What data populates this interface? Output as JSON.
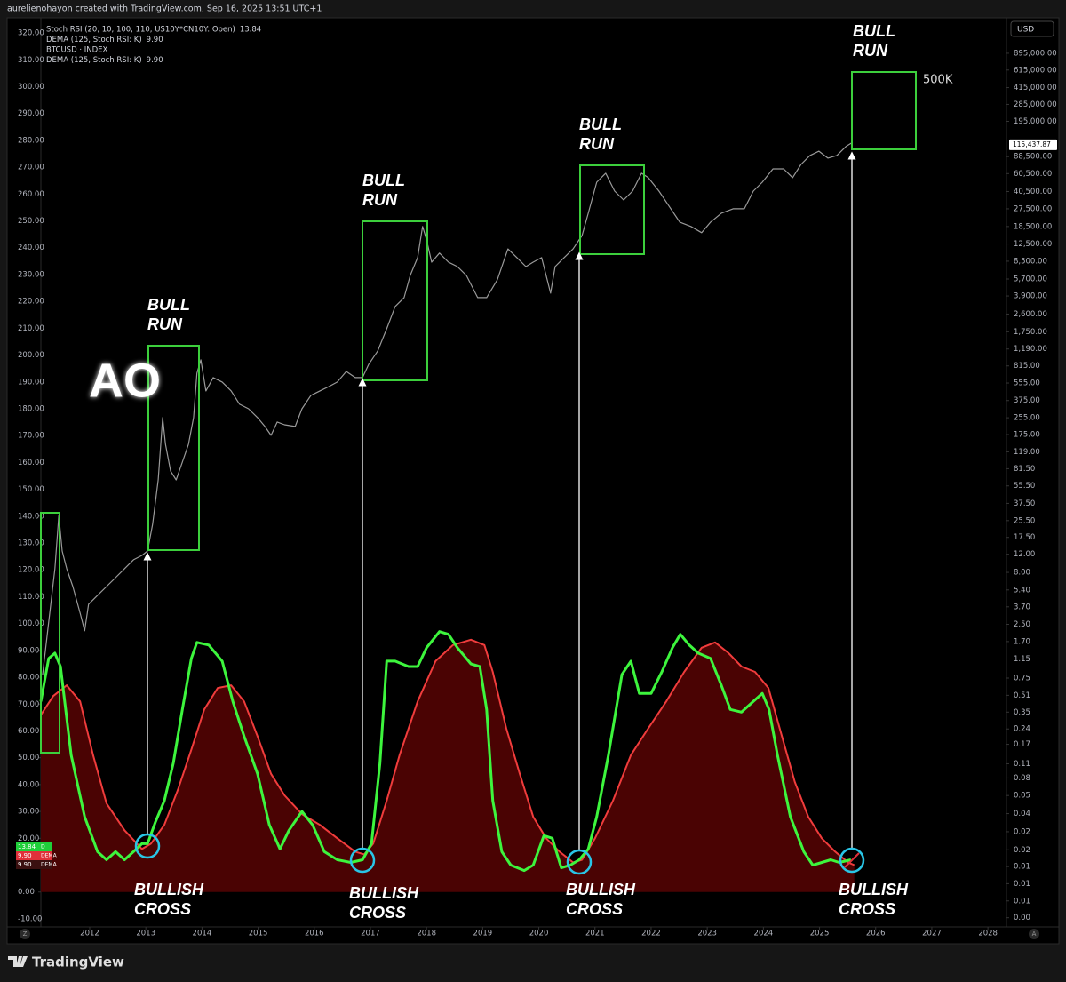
{
  "header_text": "aurelienohayon created with TradingView.com, Sep 16, 2025 13:51 UTC+1",
  "footer_brand": "TradingView",
  "buttons": {
    "currency": "USD",
    "left": "Z",
    "right": "A"
  },
  "chart_data": {
    "type": "line",
    "xlim": [
      2011.13,
      2028.33
    ],
    "xticks": [
      2012,
      2013,
      2014,
      2015,
      2016,
      2017,
      2018,
      2019,
      2020,
      2021,
      2022,
      2023,
      2024,
      2025,
      2026,
      2027,
      2028
    ],
    "ylim": [
      -13,
      323
    ],
    "yticks": [
      {
        "value": 320,
        "label": "320.00"
      },
      {
        "value": 310,
        "label": "310.00"
      },
      {
        "value": 300,
        "label": "300.00"
      },
      {
        "value": 290,
        "label": "290.00"
      },
      {
        "value": 280,
        "label": "280.00"
      },
      {
        "value": 270,
        "label": "270.00"
      },
      {
        "value": 260,
        "label": "260.00"
      },
      {
        "value": 250,
        "label": "250.00"
      },
      {
        "value": 240,
        "label": "240.00"
      },
      {
        "value": 230,
        "label": "230.00"
      },
      {
        "value": 220,
        "label": "220.00"
      },
      {
        "value": 210,
        "label": "210.00"
      },
      {
        "value": 200,
        "label": "200.00"
      },
      {
        "value": 190,
        "label": "190.00"
      },
      {
        "value": 180,
        "label": "180.00"
      },
      {
        "value": 170,
        "label": "170.00"
      },
      {
        "value": 160,
        "label": "160.00"
      },
      {
        "value": 150,
        "label": "150.00"
      },
      {
        "value": 140,
        "label": "140.00"
      },
      {
        "value": 130,
        "label": "130.00"
      },
      {
        "value": 120,
        "label": "120.00"
      },
      {
        "value": 110,
        "label": "110.00"
      },
      {
        "value": 100,
        "label": "100.00"
      },
      {
        "value": 90,
        "label": "90.00"
      },
      {
        "value": 80,
        "label": "80.00"
      },
      {
        "value": 70,
        "label": "70.00"
      },
      {
        "value": 60,
        "label": "60.00"
      },
      {
        "value": 50,
        "label": "50.00"
      },
      {
        "value": 40,
        "label": "40.00"
      },
      {
        "value": 30,
        "label": "30.00"
      },
      {
        "value": 20,
        "label": "20.00"
      },
      {
        "value": 10,
        "label": "10.00"
      },
      {
        "value": 0,
        "label": "0.00"
      },
      {
        "value": -10,
        "label": "-10.00"
      }
    ],
    "y2lim": [
      0.00285,
      1690000
    ],
    "y2log": true,
    "y2ticks": [
      {
        "value": 895000,
        "label": "895,000.00"
      },
      {
        "value": 615000,
        "label": "615,000.00"
      },
      {
        "value": 415000,
        "label": "415,000.00"
      },
      {
        "value": 285000,
        "label": "285,000.00"
      },
      {
        "value": 195000,
        "label": "195,000.00"
      },
      {
        "value": 88500,
        "label": "88,500.00"
      },
      {
        "value": 60500,
        "label": "60,500.00"
      },
      {
        "value": 40500,
        "label": "40,500.00"
      },
      {
        "value": 27500,
        "label": "27,500.00"
      },
      {
        "value": 18500,
        "label": "18,500.00"
      },
      {
        "value": 12500,
        "label": "12,500.00"
      },
      {
        "value": 8500,
        "label": "8,500.00"
      },
      {
        "value": 5700,
        "label": "5,700.00"
      },
      {
        "value": 3900,
        "label": "3,900.00"
      },
      {
        "value": 2600,
        "label": "2,600.00"
      },
      {
        "value": 1750,
        "label": "1,750.00"
      },
      {
        "value": 1190,
        "label": "1,190.00"
      },
      {
        "value": 815,
        "label": "815.00"
      },
      {
        "value": 555,
        "label": "555.00"
      },
      {
        "value": 375,
        "label": "375.00"
      },
      {
        "value": 255,
        "label": "255.00"
      },
      {
        "value": 175,
        "label": "175.00"
      },
      {
        "value": 119,
        "label": "119.00"
      },
      {
        "value": 81.5,
        "label": "81.50"
      },
      {
        "value": 55.5,
        "label": "55.50"
      },
      {
        "value": 37.5,
        "label": "37.50"
      },
      {
        "value": 25.5,
        "label": "25.50"
      },
      {
        "value": 17.5,
        "label": "17.50"
      },
      {
        "value": 12,
        "label": "12.00"
      },
      {
        "value": 8,
        "label": "8.00"
      },
      {
        "value": 5.4,
        "label": "5.40"
      },
      {
        "value": 3.7,
        "label": "3.70"
      },
      {
        "value": 2.5,
        "label": "2.50"
      },
      {
        "value": 1.7,
        "label": "1.70"
      },
      {
        "value": 1.15,
        "label": "1.15"
      },
      {
        "value": 0.75,
        "label": "0.75"
      },
      {
        "value": 0.51,
        "label": "0.51"
      },
      {
        "value": 0.35,
        "label": "0.35"
      },
      {
        "value": 0.24,
        "label": "0.24"
      },
      {
        "value": 0.17,
        "label": "0.17"
      },
      {
        "value": 0.11,
        "label": "0.11"
      },
      {
        "value": 0.08,
        "label": "0.08"
      },
      {
        "value": 0.054,
        "label": "0.05"
      },
      {
        "value": 0.036,
        "label": "0.04"
      },
      {
        "value": 0.024,
        "label": "0.02"
      },
      {
        "value": 0.016,
        "label": "0.02"
      },
      {
        "value": 0.011,
        "label": "0.01"
      },
      {
        "value": 0.0075,
        "label": "0.01"
      },
      {
        "value": 0.0051,
        "label": "0.01"
      },
      {
        "value": 0.0035,
        "label": "0.00"
      }
    ],
    "last_price": {
      "value": 115437.87,
      "label": "115,437.87"
    },
    "series": [
      {
        "name": "DEMA (125, Stoch RSI: K)",
        "type": "area",
        "color": "#f03c3c",
        "fill": "#4a0303",
        "legend_value": "9.90",
        "x": [
          2011.13,
          2011.35,
          2011.59,
          2011.83,
          2012.06,
          2012.3,
          2012.62,
          2012.93,
          2013.09,
          2013.33,
          2013.57,
          2013.81,
          2014.04,
          2014.28,
          2014.52,
          2014.75,
          2014.99,
          2015.23,
          2015.47,
          2015.78,
          2016.1,
          2016.41,
          2016.73,
          2016.89,
          2017.05,
          2017.29,
          2017.52,
          2017.84,
          2018.16,
          2018.47,
          2018.79,
          2019.03,
          2019.18,
          2019.42,
          2019.66,
          2019.9,
          2020.13,
          2020.37,
          2020.61,
          2020.77,
          2021.0,
          2021.32,
          2021.64,
          2021.95,
          2022.27,
          2022.59,
          2022.9,
          2023.14,
          2023.38,
          2023.61,
          2023.85,
          2024.09,
          2024.33,
          2024.56,
          2024.8,
          2025.04,
          2025.28,
          2025.51,
          2025.62
        ],
        "values": [
          66,
          73,
          77,
          71,
          51,
          33,
          23,
          16,
          18,
          25,
          38,
          53,
          68,
          76,
          77,
          71,
          58,
          44,
          36,
          29,
          25,
          20,
          15,
          14,
          18,
          34,
          51,
          71,
          86,
          92,
          94,
          92,
          82,
          61,
          44,
          28,
          20,
          15,
          11,
          12,
          20,
          34,
          51,
          61,
          71,
          82,
          91,
          93,
          89,
          84,
          82,
          76,
          58,
          41,
          28,
          20,
          15,
          11,
          10
        ]
      },
      {
        "name": "Stoch RSI (20, 10, 100, 110, US10Y*CN10Y: Open)",
        "type": "line",
        "color": "#3df53d",
        "legend_value": "13.84",
        "x": [
          2011.13,
          2011.27,
          2011.38,
          2011.48,
          2011.67,
          2011.91,
          2012.14,
          2012.3,
          2012.46,
          2012.62,
          2012.78,
          2012.93,
          2013.03,
          2013.17,
          2013.33,
          2013.49,
          2013.65,
          2013.81,
          2013.91,
          2014.12,
          2014.36,
          2014.55,
          2014.75,
          2014.99,
          2015.2,
          2015.39,
          2015.55,
          2015.78,
          2015.97,
          2016.18,
          2016.41,
          2016.65,
          2016.86,
          2017.02,
          2017.17,
          2017.29,
          2017.44,
          2017.68,
          2017.84,
          2018.0,
          2018.23,
          2018.39,
          2018.55,
          2018.79,
          2018.95,
          2019.07,
          2019.18,
          2019.34,
          2019.5,
          2019.74,
          2019.9,
          2020.09,
          2020.24,
          2020.4,
          2020.56,
          2020.72,
          2020.88,
          2021.03,
          2021.24,
          2021.48,
          2021.64,
          2021.79,
          2022.0,
          2022.19,
          2022.38,
          2022.52,
          2022.68,
          2022.84,
          2023.06,
          2023.25,
          2023.41,
          2023.61,
          2023.82,
          2023.98,
          2024.1,
          2024.25,
          2024.48,
          2024.72,
          2024.88,
          2025.04,
          2025.2,
          2025.35,
          2025.56
        ],
        "values": [
          71,
          87,
          89,
          84,
          51,
          28,
          15,
          12,
          15,
          12,
          15,
          18,
          18,
          26,
          34,
          48,
          68,
          87,
          93,
          92,
          86,
          71,
          58,
          44,
          25,
          16,
          23,
          30,
          25,
          15,
          12,
          11,
          12,
          18,
          48,
          86,
          86,
          84,
          84,
          91,
          97,
          96,
          91,
          85,
          84,
          68,
          34,
          15,
          10,
          8,
          10,
          21,
          20,
          9,
          10,
          12,
          16,
          28,
          51,
          81,
          86,
          74,
          74,
          82,
          91,
          96,
          92,
          89,
          87,
          77,
          68,
          67,
          71,
          74,
          68,
          51,
          28,
          15,
          10,
          11,
          12,
          11,
          12
        ]
      },
      {
        "name": "BTCUSD · INDEX",
        "type": "line",
        "axis": "y2",
        "color": "#9a9a9a",
        "x": [
          2011.16,
          2011.27,
          2011.38,
          2011.45,
          2011.51,
          2011.59,
          2011.7,
          2011.83,
          2011.91,
          2011.98,
          2012.14,
          2012.3,
          2012.46,
          2012.62,
          2012.78,
          2012.93,
          2013.03,
          2013.12,
          2013.22,
          2013.3,
          2013.35,
          2013.44,
          2013.54,
          2013.65,
          2013.76,
          2013.85,
          2013.91,
          2013.98,
          2014.07,
          2014.2,
          2014.36,
          2014.52,
          2014.67,
          2014.83,
          2014.99,
          2015.12,
          2015.23,
          2015.34,
          2015.47,
          2015.66,
          2015.78,
          2015.94,
          2016.1,
          2016.26,
          2016.41,
          2016.57,
          2016.73,
          2016.86,
          2016.97,
          2017.13,
          2017.29,
          2017.44,
          2017.6,
          2017.71,
          2017.84,
          2017.93,
          2018.0,
          2018.09,
          2018.23,
          2018.39,
          2018.55,
          2018.71,
          2018.91,
          2019.07,
          2019.26,
          2019.45,
          2019.61,
          2019.77,
          2019.9,
          2020.05,
          2020.21,
          2020.29,
          2020.45,
          2020.61,
          2020.77,
          2020.88,
          2021.03,
          2021.19,
          2021.35,
          2021.51,
          2021.67,
          2021.83,
          2021.95,
          2022.14,
          2022.3,
          2022.51,
          2022.71,
          2022.9,
          2023.06,
          2023.25,
          2023.46,
          2023.66,
          2023.82,
          2023.98,
          2024.17,
          2024.36,
          2024.52,
          2024.67,
          2024.83,
          2024.99,
          2025.15,
          2025.31,
          2025.47,
          2025.59
        ],
        "values": [
          0.8,
          2.63,
          8.69,
          28.7,
          12.9,
          8.69,
          5.83,
          3.21,
          2.16,
          3.92,
          4.78,
          5.83,
          7.11,
          8.69,
          10.6,
          11.7,
          12.9,
          23.5,
          63.5,
          256,
          141,
          77.4,
          63.5,
          94.6,
          141,
          256,
          692,
          933,
          465,
          627,
          568,
          465,
          345,
          312,
          256,
          210,
          172,
          232,
          218,
          210,
          312,
          421,
          465,
          513,
          568,
          720,
          627,
          627,
          845,
          1140,
          1870,
          3080,
          3760,
          6180,
          9200,
          18500,
          13700,
          8320,
          10200,
          8320,
          7530,
          6180,
          3760,
          3760,
          5600,
          11200,
          9200,
          7530,
          8320,
          9200,
          4150,
          7530,
          9200,
          11200,
          15100,
          24900,
          49900,
          61000,
          40900,
          33500,
          40900,
          61000,
          55200,
          40900,
          30300,
          20400,
          18500,
          16100,
          20400,
          24900,
          27500,
          27500,
          40900,
          49900,
          67300,
          67300,
          55200,
          74300,
          90800,
          100000,
          85500,
          90800,
          111000,
          122000
        ]
      }
    ],
    "extra_legend": {
      "name": "DEMA (125, Stoch RSI: K)",
      "value": "9.90",
      "color": "#5c1414"
    },
    "price_tags": [
      {
        "text": "13.84",
        "suffix": "D",
        "color": "#1fcf3a"
      },
      {
        "text": "9.90",
        "suffix": "DEMA",
        "color": "#e0303a"
      },
      {
        "text": "9.90",
        "suffix": "DEMA",
        "color": "#3a1010"
      }
    ],
    "annotations": {
      "bull_run": [
        [
          "BULL",
          "RUN"
        ],
        [
          "BULL",
          "RUN"
        ],
        [
          "BULL",
          "RUN"
        ],
        [
          "BULL",
          "RUN"
        ]
      ],
      "bullish_cross": [
        [
          "BULLISH",
          "CROSS"
        ],
        [
          "BULLISH",
          "CROSS"
        ],
        [
          "BULLISH",
          "CROSS"
        ],
        [
          "BULLISH",
          "CROSS"
        ]
      ],
      "logo_text": "AO",
      "target": "500K"
    }
  }
}
